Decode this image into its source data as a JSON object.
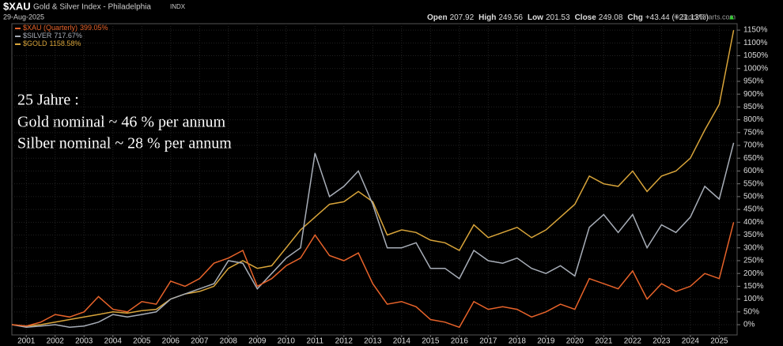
{
  "chart_data": {
    "type": "line",
    "symbol": "$XAU",
    "title": "Gold & Silver Index - Philadelphia",
    "exchange": "INDX",
    "date": "29-Aug-2025",
    "quote": [
      {
        "label": "Open",
        "value": "207.92"
      },
      {
        "label": "High",
        "value": "249.56"
      },
      {
        "label": "Low",
        "value": "201.53"
      },
      {
        "label": "Close",
        "value": "249.08"
      },
      {
        "label": "Chg",
        "value": "+43.44 (+21.13%)"
      }
    ],
    "quote_arrow": "▲",
    "credit": "© StockCharts.com",
    "annotations": [
      "25 Jahre :",
      "Gold nominal ~ 46 % per annum",
      "Silber nominal ~ 28 % per annum"
    ],
    "x": [
      2000.5,
      2001,
      2001.5,
      2002,
      2002.5,
      2003,
      2003.5,
      2004,
      2004.5,
      2005,
      2005.5,
      2006,
      2006.5,
      2007,
      2007.5,
      2008,
      2008.5,
      2009,
      2009.5,
      2010,
      2010.5,
      2011,
      2011.5,
      2012,
      2012.5,
      2013,
      2013.5,
      2014,
      2014.5,
      2015,
      2015.5,
      2016,
      2016.5,
      2017,
      2017.5,
      2018,
      2018.5,
      2019,
      2019.5,
      2020,
      2020.5,
      2021,
      2021.5,
      2022,
      2022.5,
      2023,
      2023.5,
      2024,
      2024.5,
      2025,
      2025.5
    ],
    "series": [
      {
        "name": "$XAU (Quarterly)",
        "last_label": "399.05%",
        "color": "#e8632a",
        "values": [
          0,
          -5,
          10,
          40,
          30,
          50,
          110,
          60,
          50,
          90,
          80,
          170,
          150,
          180,
          240,
          260,
          290,
          150,
          180,
          230,
          260,
          350,
          270,
          250,
          280,
          160,
          80,
          90,
          70,
          20,
          10,
          -10,
          90,
          60,
          70,
          60,
          30,
          50,
          80,
          60,
          180,
          160,
          140,
          210,
          100,
          160,
          130,
          150,
          200,
          180,
          400
        ]
      },
      {
        "name": "$SILVER",
        "last_label": "717.67%",
        "color": "#a8aeb8",
        "values": [
          0,
          -10,
          -5,
          0,
          -10,
          -5,
          10,
          40,
          30,
          40,
          50,
          100,
          120,
          140,
          160,
          250,
          240,
          140,
          200,
          260,
          300,
          670,
          500,
          540,
          600,
          470,
          300,
          300,
          320,
          220,
          220,
          180,
          290,
          250,
          240,
          260,
          220,
          200,
          230,
          190,
          380,
          430,
          360,
          430,
          300,
          390,
          360,
          420,
          540,
          490,
          710
        ]
      },
      {
        "name": "$GOLD",
        "last_label": "1158.58%",
        "color": "#d9a53a",
        "values": [
          0,
          -5,
          0,
          10,
          20,
          30,
          40,
          50,
          45,
          55,
          60,
          100,
          120,
          130,
          150,
          220,
          250,
          220,
          230,
          300,
          370,
          420,
          470,
          480,
          520,
          480,
          350,
          370,
          360,
          330,
          320,
          290,
          390,
          340,
          360,
          380,
          340,
          370,
          420,
          470,
          580,
          550,
          540,
          600,
          520,
          580,
          600,
          650,
          760,
          860,
          1150
        ]
      }
    ],
    "xlim": [
      2000.5,
      2025.62
    ],
    "xticks": [
      2001,
      2002,
      2003,
      2004,
      2005,
      2006,
      2007,
      2008,
      2009,
      2010,
      2011,
      2012,
      2013,
      2014,
      2015,
      2016,
      2017,
      2018,
      2019,
      2020,
      2021,
      2022,
      2023,
      2024,
      2025
    ],
    "ylim": [
      -40,
      1175
    ],
    "yticks": [
      {
        "value": 0,
        "label": "0%"
      },
      {
        "value": 50,
        "label": "50%"
      },
      {
        "value": 100,
        "label": "100%"
      },
      {
        "value": 150,
        "label": "150%"
      },
      {
        "value": 200,
        "label": "200%"
      },
      {
        "value": 250,
        "label": "250%"
      },
      {
        "value": 300,
        "label": "300%"
      },
      {
        "value": 350,
        "label": "350%"
      },
      {
        "value": 400,
        "label": "400%"
      },
      {
        "value": 450,
        "label": "450%"
      },
      {
        "value": 500,
        "label": "500%"
      },
      {
        "value": 550,
        "label": "550%"
      },
      {
        "value": 600,
        "label": "600%"
      },
      {
        "value": 650,
        "label": "650%"
      },
      {
        "value": 700,
        "label": "700%"
      },
      {
        "value": 750,
        "label": "750%"
      },
      {
        "value": 800,
        "label": "800%"
      },
      {
        "value": 850,
        "label": "850%"
      },
      {
        "value": 900,
        "label": "900%"
      },
      {
        "value": 950,
        "label": "950%"
      },
      {
        "value": 1000,
        "label": "1000%"
      },
      {
        "value": 1050,
        "label": "1050%"
      },
      {
        "value": 1100,
        "label": "1100%"
      },
      {
        "value": 1150,
        "label": "1150%"
      }
    ],
    "grid": true
  }
}
